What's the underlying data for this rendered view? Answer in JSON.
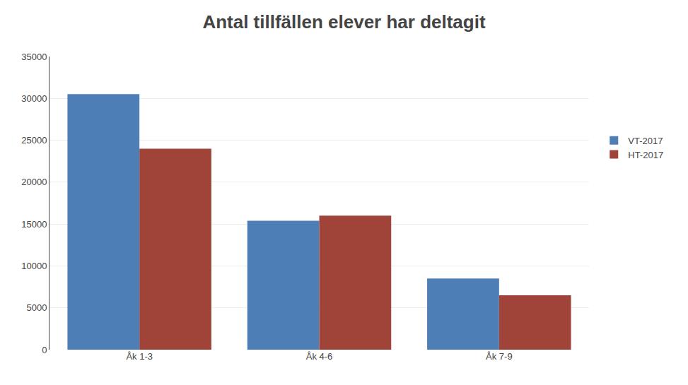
{
  "chart_data": {
    "type": "bar",
    "title": "Antal tillfällen elever har deltagit",
    "categories": [
      "Åk 1-3",
      "Åk 4-6",
      "Åk 7-9"
    ],
    "series": [
      {
        "name": "VT-2017",
        "color": "#4d7eb5",
        "values": [
          30500,
          15400,
          8500
        ]
      },
      {
        "name": "HT-2017",
        "color": "#a0443a",
        "values": [
          24000,
          16000,
          6500
        ]
      }
    ],
    "ylim": [
      0,
      35000
    ],
    "yticks": [
      0,
      5000,
      10000,
      15000,
      20000,
      25000,
      30000,
      35000
    ],
    "grid": true,
    "legend": "right"
  }
}
